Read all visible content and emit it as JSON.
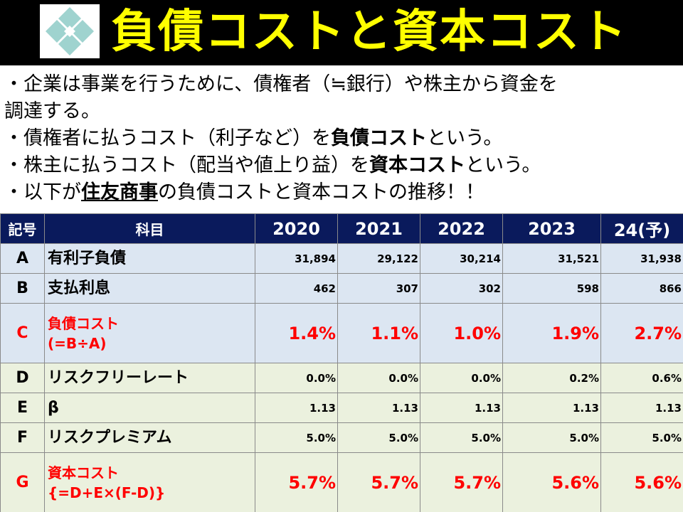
{
  "header": {
    "title": "負債コストと資本コスト",
    "logo_icon": "sumitomo-igeta-logo-icon",
    "title_color": "#ffff00"
  },
  "bullets": {
    "b1_line1": "・企業は事業を行うために、債権者（≒銀行）や株主から資金を",
    "b1_line2": "調達する。",
    "b2_pre": "・債権者に払うコスト（利子など）を",
    "b2_bold": "負債コスト",
    "b2_post": "という。",
    "b3_pre": "・株主に払うコスト（配当や値上り益）を",
    "b3_bold": "資本コスト",
    "b3_post": "という。",
    "b4_pre": "・以下が",
    "b4_bold": "住友商事",
    "b4_post": "の負債コストと資本コストの推移！！"
  },
  "table": {
    "headers": {
      "code": "記号",
      "item": "科目",
      "years": [
        "2020",
        "2021",
        "2022",
        "2023",
        "24(予)"
      ]
    },
    "rows": [
      {
        "code": "A",
        "item1": "有利子負債",
        "item2": "",
        "values": [
          "31,894",
          "29,122",
          "30,214",
          "31,521",
          "31,938"
        ]
      },
      {
        "code": "B",
        "item1": "支払利息",
        "item2": "",
        "values": [
          "462",
          "307",
          "302",
          "598",
          "866"
        ]
      },
      {
        "code": "C",
        "item1": "負債コスト",
        "item2": "(=B÷A)",
        "values": [
          "1.4%",
          "1.1%",
          "1.0%",
          "1.9%",
          "2.7%"
        ]
      },
      {
        "code": "D",
        "item1": "リスクフリーレート",
        "item2": "",
        "values": [
          "0.0%",
          "0.0%",
          "0.0%",
          "0.2%",
          "0.6%"
        ]
      },
      {
        "code": "E",
        "item1": "β",
        "item2": "",
        "values": [
          "1.13",
          "1.13",
          "1.13",
          "1.13",
          "1.13"
        ]
      },
      {
        "code": "F",
        "item1": "リスクプレミアム",
        "item2": "",
        "values": [
          "5.0%",
          "5.0%",
          "5.0%",
          "5.0%",
          "5.0%"
        ]
      },
      {
        "code": "G",
        "item1": "資本コスト",
        "item2": "{=D+E×(F-D)}",
        "values": [
          "5.7%",
          "5.7%",
          "5.7%",
          "5.6%",
          "5.6%"
        ]
      }
    ],
    "colors": {
      "header_bg": "#0a1a5c",
      "blue_row": "#dce6f2",
      "green_row": "#ebf1de",
      "highlight": "#ff0000"
    }
  }
}
